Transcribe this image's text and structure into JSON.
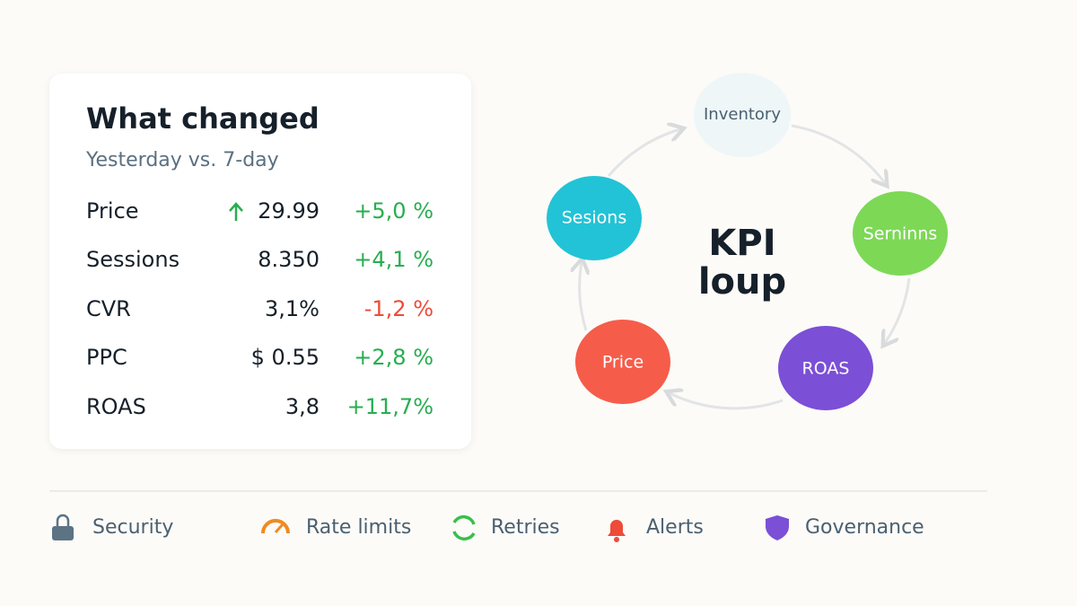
{
  "card": {
    "title": "What changed",
    "subtitle": "Yesterday vs. 7-day",
    "rows": [
      [
        "Price",
        "29.99",
        "+5,0 %"
      ],
      [
        "Sessions",
        "8.350",
        "+4,1 %"
      ],
      [
        "CVR",
        "3,1%",
        "-1,2 %"
      ],
      [
        "PPC",
        "$ 0.55",
        "+2,8 %"
      ],
      [
        "ROAS",
        "3,8",
        "+11,7%"
      ]
    ]
  },
  "loop": {
    "center": [
      "KPI",
      "loup"
    ],
    "nodes": [
      "Inventory",
      "Serninns",
      "ROAS",
      "Price",
      "Sesions"
    ]
  },
  "footer": [
    "Security",
    "Rate limits",
    "Retries",
    "Alerts",
    "Governance"
  ]
}
